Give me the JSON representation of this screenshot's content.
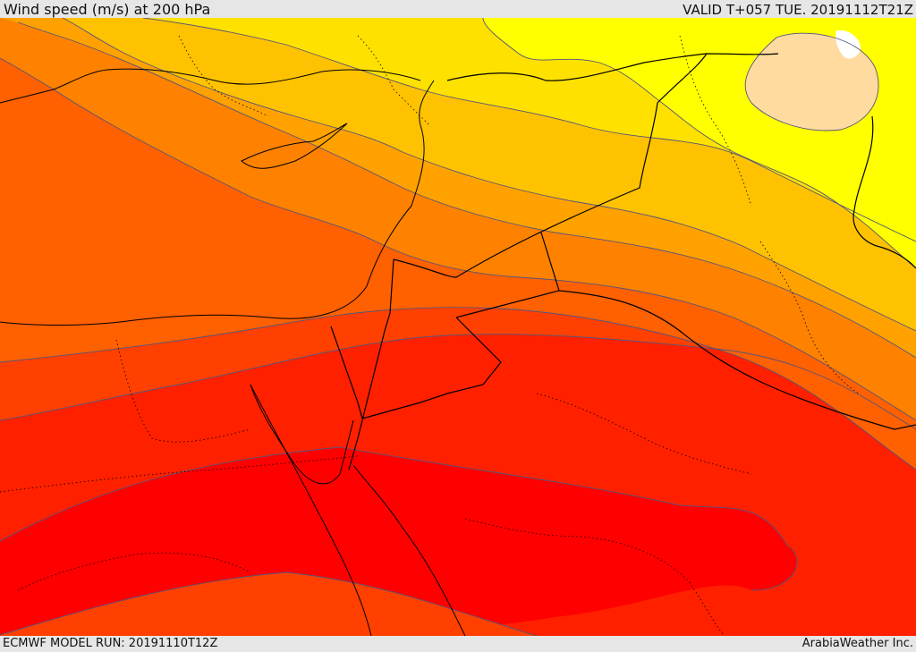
{
  "header": {
    "title": "Wind speed (m/s) at 200 hPa",
    "valid": "VALID T+057 TUE. 20191112T21Z"
  },
  "footer": {
    "model_run": "ECMWF MODEL RUN: 20191110T12Z",
    "credit": "ArabiaWeather Inc."
  },
  "map": {
    "variable": "wind speed",
    "level": "200 hPa",
    "units": "m/s",
    "colors": {
      "band_1": "#ffff00",
      "band_2": "#ffe100",
      "band_3": "#ffc200",
      "band_4": "#ffa200",
      "band_5": "#ff8100",
      "band_6": "#ff6000",
      "band_7": "#ff4000",
      "band_8": "#ff2000",
      "band_9": "#ff0000",
      "minimum_patch": "#ffdba0",
      "contour": "#55557a",
      "coastline": "#000000",
      "border": "#000000"
    }
  }
}
